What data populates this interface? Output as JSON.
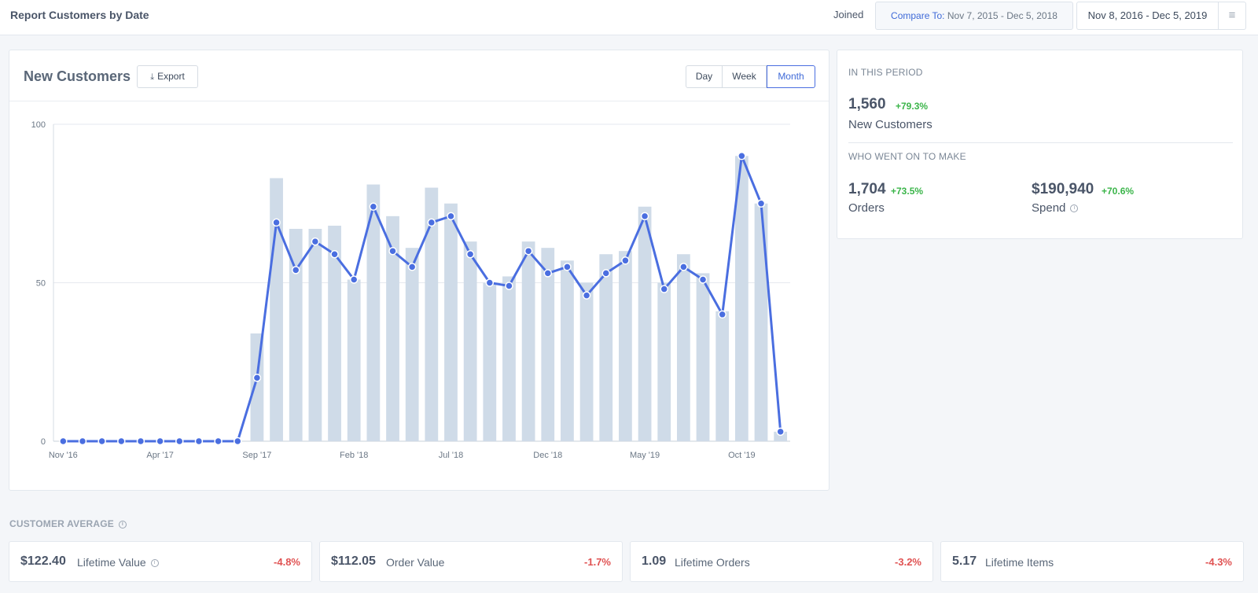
{
  "header": {
    "title": "Report Customers by Date",
    "joined_label": "Joined",
    "compare_label": "Compare To:",
    "compare_range": "Nov 7, 2015 - Dec 5, 2018",
    "date_range": "Nov 8, 2016 - Dec 5, 2019",
    "menu_icon": "hamburger-icon"
  },
  "chart_card": {
    "title": "New Customers",
    "export_label": "Export",
    "periods": [
      "Day",
      "Week",
      "Month"
    ],
    "active_period": "Month"
  },
  "chart_data": {
    "type": "bar",
    "categories": [
      "Nov '16",
      "Dec '16",
      "Jan '17",
      "Feb '17",
      "Mar '17",
      "Apr '17",
      "May '17",
      "Jun '17",
      "Jul '17",
      "Aug '17",
      "Sep '17",
      "Oct '17",
      "Nov '17",
      "Dec '17",
      "Jan '18",
      "Feb '18",
      "Mar '18",
      "Apr '18",
      "May '18",
      "Jun '18",
      "Jul '18",
      "Aug '18",
      "Sep '18",
      "Oct '18",
      "Nov '18",
      "Dec '18",
      "Jan '19",
      "Feb '19",
      "Mar '19",
      "Apr '19",
      "May '19",
      "Jun '19",
      "Jul '19",
      "Aug '19",
      "Sep '19",
      "Oct '19",
      "Nov '19",
      "Dec '19"
    ],
    "x_tick_labels": [
      "Nov '16",
      "Apr '17",
      "Sep '17",
      "Feb '18",
      "Jul '18",
      "Dec '18",
      "May '19",
      "Oct '19"
    ],
    "y_ticks": [
      0,
      50,
      100
    ],
    "ylim": [
      0,
      100
    ],
    "series": [
      {
        "type": "bar",
        "color": "#cfdbe8",
        "values": [
          0,
          0,
          0,
          0,
          0,
          0,
          0,
          0,
          0,
          0,
          34,
          83,
          67,
          67,
          68,
          51,
          81,
          71,
          61,
          80,
          75,
          63,
          50,
          52,
          63,
          61,
          57,
          50,
          59,
          60,
          74,
          50,
          59,
          53,
          41,
          90,
          75,
          3
        ]
      },
      {
        "type": "line",
        "color": "#4a6ee0",
        "values": [
          0,
          0,
          0,
          0,
          0,
          0,
          0,
          0,
          0,
          0,
          20,
          69,
          54,
          63,
          59,
          51,
          74,
          60,
          55,
          69,
          71,
          59,
          50,
          49,
          60,
          53,
          55,
          46,
          53,
          57,
          71,
          48,
          55,
          51,
          40,
          90,
          75,
          3
        ]
      }
    ],
    "grid": true
  },
  "stats": {
    "period_label": "IN THIS PERIOD",
    "new_customers_value": "1,560",
    "new_customers_pct": "+79.3%",
    "new_customers_label": "New Customers",
    "went_on_label": "WHO WENT ON TO MAKE",
    "orders_value": "1,704",
    "orders_pct": "+73.5%",
    "orders_label": "Orders",
    "spend_value": "$190,940",
    "spend_pct": "+70.6%",
    "spend_label": "Spend"
  },
  "averages": {
    "label": "CUSTOMER AVERAGE",
    "items": [
      {
        "value": "$122.40",
        "label": "Lifetime Value",
        "pct": "-4.8%"
      },
      {
        "value": "$112.05",
        "label": "Order Value",
        "pct": "-1.7%"
      },
      {
        "value": "1.09",
        "label": "Lifetime Orders",
        "pct": "-3.2%"
      },
      {
        "value": "5.17",
        "label": "Lifetime Items",
        "pct": "-4.3%"
      }
    ]
  }
}
